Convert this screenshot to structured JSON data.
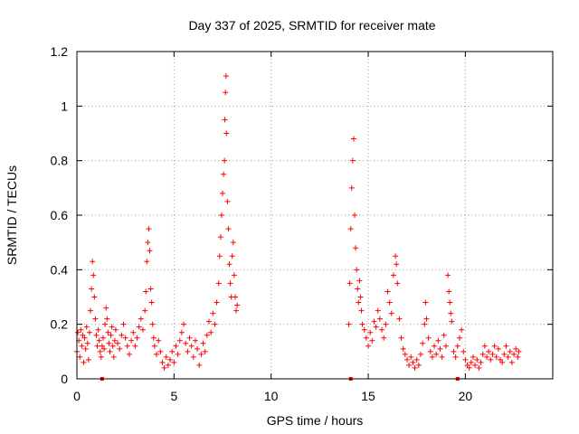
{
  "chart_data": {
    "type": "scatter",
    "title": "Day 337 of 2025, SRMTID for receiver mate",
    "xlabel": "GPS time / hours",
    "ylabel": "SRMTID / TECUs",
    "xlim": [
      0,
      24.5
    ],
    "ylim": [
      0,
      1.2
    ],
    "x_ticks": [
      0,
      5,
      10,
      15,
      20
    ],
    "x_tick_labels": [
      "0",
      "5",
      "10",
      "15",
      "20"
    ],
    "y_ticks": [
      0,
      0.2,
      0.4,
      0.6,
      0.8,
      1.0,
      1.2
    ],
    "y_tick_labels": [
      "0",
      "0.2",
      "0.4",
      "0.6",
      "0.8",
      "1",
      "1.2"
    ],
    "grid": true,
    "marker": "plus",
    "color": "#ff0000",
    "series": [
      {
        "name": "SRMTID",
        "points": [
          [
            0.0,
            0.1
          ],
          [
            0.05,
            0.17
          ],
          [
            0.1,
            0.14
          ],
          [
            0.15,
            0.08
          ],
          [
            0.2,
            0.18
          ],
          [
            0.25,
            0.12
          ],
          [
            0.3,
            0.16
          ],
          [
            0.35,
            0.06
          ],
          [
            0.4,
            0.15
          ],
          [
            0.45,
            0.11
          ],
          [
            0.5,
            0.19
          ],
          [
            0.55,
            0.13
          ],
          [
            0.6,
            0.07
          ],
          [
            0.65,
            0.17
          ],
          [
            0.7,
            0.25
          ],
          [
            0.75,
            0.33
          ],
          [
            0.8,
            0.43
          ],
          [
            0.85,
            0.38
          ],
          [
            0.9,
            0.3
          ],
          [
            0.95,
            0.22
          ],
          [
            1.0,
            0.16
          ],
          [
            1.05,
            0.12
          ],
          [
            1.1,
            0.18
          ],
          [
            1.15,
            0.14
          ],
          [
            1.2,
            0.1
          ],
          [
            1.25,
            0.08
          ],
          [
            1.3,
            0.12
          ],
          [
            1.35,
            0.15
          ],
          [
            1.4,
            0.11
          ],
          [
            1.45,
            0.2
          ],
          [
            1.5,
            0.26
          ],
          [
            1.55,
            0.22
          ],
          [
            1.6,
            0.17
          ],
          [
            1.65,
            0.13
          ],
          [
            1.7,
            0.1
          ],
          [
            1.75,
            0.16
          ],
          [
            1.8,
            0.19
          ],
          [
            1.85,
            0.12
          ],
          [
            1.9,
            0.08
          ],
          [
            1.95,
            0.14
          ],
          [
            2.0,
            0.18
          ],
          [
            2.1,
            0.13
          ],
          [
            2.2,
            0.11
          ],
          [
            2.3,
            0.16
          ],
          [
            2.4,
            0.2
          ],
          [
            2.5,
            0.15
          ],
          [
            2.6,
            0.12
          ],
          [
            2.7,
            0.09
          ],
          [
            2.8,
            0.14
          ],
          [
            2.9,
            0.17
          ],
          [
            3.0,
            0.12
          ],
          [
            3.1,
            0.15
          ],
          [
            3.2,
            0.19
          ],
          [
            3.3,
            0.22
          ],
          [
            3.4,
            0.18
          ],
          [
            3.5,
            0.25
          ],
          [
            3.55,
            0.32
          ],
          [
            3.6,
            0.43
          ],
          [
            3.65,
            0.5
          ],
          [
            3.7,
            0.55
          ],
          [
            3.75,
            0.47
          ],
          [
            3.8,
            0.33
          ],
          [
            3.85,
            0.28
          ],
          [
            3.9,
            0.2
          ],
          [
            3.95,
            0.15
          ],
          [
            4.0,
            0.12
          ],
          [
            4.1,
            0.09
          ],
          [
            4.2,
            0.14
          ],
          [
            4.3,
            0.1
          ],
          [
            4.4,
            0.06
          ],
          [
            4.5,
            0.04
          ],
          [
            4.6,
            0.08
          ],
          [
            4.7,
            0.05
          ],
          [
            4.8,
            0.07
          ],
          [
            4.9,
            0.1
          ],
          [
            5.0,
            0.06
          ],
          [
            5.1,
            0.12
          ],
          [
            5.2,
            0.09
          ],
          [
            5.3,
            0.14
          ],
          [
            5.4,
            0.17
          ],
          [
            5.5,
            0.2
          ],
          [
            5.6,
            0.13
          ],
          [
            5.7,
            0.1
          ],
          [
            5.8,
            0.15
          ],
          [
            5.9,
            0.12
          ],
          [
            6.0,
            0.08
          ],
          [
            6.1,
            0.14
          ],
          [
            6.2,
            0.11
          ],
          [
            6.3,
            0.05
          ],
          [
            6.4,
            0.09
          ],
          [
            6.5,
            0.13
          ],
          [
            6.6,
            0.1
          ],
          [
            6.7,
            0.16
          ],
          [
            6.8,
            0.21
          ],
          [
            6.9,
            0.17
          ],
          [
            7.0,
            0.24
          ],
          [
            7.1,
            0.2
          ],
          [
            7.2,
            0.28
          ],
          [
            7.3,
            0.35
          ],
          [
            7.35,
            0.45
          ],
          [
            7.4,
            0.52
          ],
          [
            7.45,
            0.6
          ],
          [
            7.5,
            0.68
          ],
          [
            7.55,
            0.75
          ],
          [
            7.6,
            0.8
          ],
          [
            7.62,
            0.95
          ],
          [
            7.65,
            1.05
          ],
          [
            7.68,
            1.11
          ],
          [
            7.7,
            0.9
          ],
          [
            7.75,
            0.65
          ],
          [
            7.8,
            0.55
          ],
          [
            7.85,
            0.42
          ],
          [
            7.9,
            0.35
          ],
          [
            7.95,
            0.3
          ],
          [
            8.0,
            0.45
          ],
          [
            8.05,
            0.5
          ],
          [
            8.1,
            0.38
          ],
          [
            8.15,
            0.3
          ],
          [
            8.2,
            0.25
          ],
          [
            8.25,
            0.27
          ],
          [
            14.0,
            0.2
          ],
          [
            14.05,
            0.35
          ],
          [
            14.1,
            0.55
          ],
          [
            14.15,
            0.7
          ],
          [
            14.2,
            0.8
          ],
          [
            14.25,
            0.88
          ],
          [
            14.3,
            0.6
          ],
          [
            14.35,
            0.48
          ],
          [
            14.4,
            0.4
          ],
          [
            14.45,
            0.33
          ],
          [
            14.5,
            0.28
          ],
          [
            14.55,
            0.36
          ],
          [
            14.6,
            0.3
          ],
          [
            14.65,
            0.25
          ],
          [
            14.7,
            0.2
          ],
          [
            14.8,
            0.18
          ],
          [
            14.9,
            0.15
          ],
          [
            15.0,
            0.12
          ],
          [
            15.1,
            0.17
          ],
          [
            15.2,
            0.14
          ],
          [
            15.3,
            0.21
          ],
          [
            15.4,
            0.19
          ],
          [
            15.5,
            0.25
          ],
          [
            15.6,
            0.22
          ],
          [
            15.7,
            0.18
          ],
          [
            15.8,
            0.15
          ],
          [
            15.9,
            0.2
          ],
          [
            16.0,
            0.32
          ],
          [
            16.1,
            0.28
          ],
          [
            16.2,
            0.24
          ],
          [
            16.3,
            0.38
          ],
          [
            16.4,
            0.45
          ],
          [
            16.45,
            0.42
          ],
          [
            16.5,
            0.35
          ],
          [
            16.6,
            0.22
          ],
          [
            16.7,
            0.15
          ],
          [
            16.8,
            0.11
          ],
          [
            16.9,
            0.09
          ],
          [
            17.0,
            0.07
          ],
          [
            17.1,
            0.05
          ],
          [
            17.2,
            0.08
          ],
          [
            17.3,
            0.06
          ],
          [
            17.4,
            0.04
          ],
          [
            17.5,
            0.07
          ],
          [
            17.6,
            0.05
          ],
          [
            17.7,
            0.09
          ],
          [
            17.8,
            0.13
          ],
          [
            17.9,
            0.2
          ],
          [
            17.95,
            0.28
          ],
          [
            18.0,
            0.22
          ],
          [
            18.1,
            0.15
          ],
          [
            18.2,
            0.1
          ],
          [
            18.3,
            0.08
          ],
          [
            18.4,
            0.12
          ],
          [
            18.5,
            0.09
          ],
          [
            18.6,
            0.14
          ],
          [
            18.7,
            0.11
          ],
          [
            18.8,
            0.08
          ],
          [
            18.9,
            0.16
          ],
          [
            19.0,
            0.12
          ],
          [
            19.1,
            0.38
          ],
          [
            19.15,
            0.32
          ],
          [
            19.2,
            0.28
          ],
          [
            19.25,
            0.24
          ],
          [
            19.3,
            0.21
          ],
          [
            19.4,
            0.1
          ],
          [
            19.5,
            0.08
          ],
          [
            19.6,
            0.12
          ],
          [
            19.7,
            0.15
          ],
          [
            19.8,
            0.18
          ],
          [
            19.9,
            0.1
          ],
          [
            20.0,
            0.07
          ],
          [
            20.1,
            0.05
          ],
          [
            20.2,
            0.04
          ],
          [
            20.3,
            0.06
          ],
          [
            20.4,
            0.08
          ],
          [
            20.5,
            0.05
          ],
          [
            20.6,
            0.07
          ],
          [
            20.7,
            0.04
          ],
          [
            20.8,
            0.06
          ],
          [
            20.9,
            0.09
          ],
          [
            21.0,
            0.12
          ],
          [
            21.1,
            0.08
          ],
          [
            21.2,
            0.1
          ],
          [
            21.3,
            0.07
          ],
          [
            21.4,
            0.09
          ],
          [
            21.5,
            0.12
          ],
          [
            21.6,
            0.08
          ],
          [
            21.7,
            0.11
          ],
          [
            21.8,
            0.07
          ],
          [
            21.9,
            0.06
          ],
          [
            22.0,
            0.09
          ],
          [
            22.1,
            0.12
          ],
          [
            22.2,
            0.08
          ],
          [
            22.3,
            0.1
          ],
          [
            22.4,
            0.06
          ],
          [
            22.5,
            0.09
          ],
          [
            22.6,
            0.11
          ],
          [
            22.7,
            0.08
          ],
          [
            22.75,
            0.1
          ]
        ]
      }
    ],
    "baseline_markers": {
      "marker": "square",
      "x": [
        1.3,
        14.1,
        19.6
      ],
      "y": [
        0,
        0,
        0
      ]
    }
  }
}
